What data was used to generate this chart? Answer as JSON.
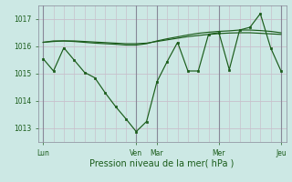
{
  "background_color": "#cce8e4",
  "grid_h_color": "#c8c0cc",
  "grid_v_color": "#c8c0cc",
  "day_line_color": "#888898",
  "line_color": "#1a5c1a",
  "marker_color": "#1a5c1a",
  "tick_label_color": "#1a5c1a",
  "axis_label_color": "#1a5c1a",
  "xlabel": "Pression niveau de la mer( hPa )",
  "ylim": [
    1012.5,
    1017.5
  ],
  "yticks": [
    1013,
    1014,
    1015,
    1016,
    1017
  ],
  "x_day_labels": [
    "Lun",
    "Ven",
    "Mar",
    "Mer",
    "Jeu"
  ],
  "x_day_positions": [
    0,
    9,
    11,
    17,
    23
  ],
  "num_points": 24,
  "series1_x": [
    0,
    1,
    2,
    3,
    4,
    5,
    6,
    7,
    8,
    9,
    10,
    11,
    12,
    13,
    14,
    15,
    16,
    17,
    18,
    19,
    20,
    21,
    22,
    23
  ],
  "series1_y": [
    1015.55,
    1015.1,
    1015.95,
    1015.5,
    1015.05,
    1014.85,
    1014.3,
    1013.8,
    1013.35,
    1012.88,
    1013.25,
    1014.7,
    1015.45,
    1016.15,
    1015.1,
    1015.1,
    1016.45,
    1016.5,
    1015.15,
    1016.6,
    1016.7,
    1017.2,
    1015.95,
    1015.1
  ],
  "series2_y": [
    1016.15,
    1016.2,
    1016.2,
    1016.18,
    1016.15,
    1016.12,
    1016.1,
    1016.08,
    1016.05,
    1016.05,
    1016.1,
    1016.2,
    1016.28,
    1016.35,
    1016.42,
    1016.48,
    1016.52,
    1016.55,
    1016.57,
    1016.6,
    1016.6,
    1016.58,
    1016.55,
    1016.5
  ],
  "series3_y": [
    1016.15,
    1016.18,
    1016.2,
    1016.2,
    1016.18,
    1016.16,
    1016.14,
    1016.12,
    1016.1,
    1016.1,
    1016.12,
    1016.18,
    1016.24,
    1016.3,
    1016.36,
    1016.4,
    1016.44,
    1016.47,
    1016.49,
    1016.5,
    1016.5,
    1016.48,
    1016.46,
    1016.44
  ]
}
